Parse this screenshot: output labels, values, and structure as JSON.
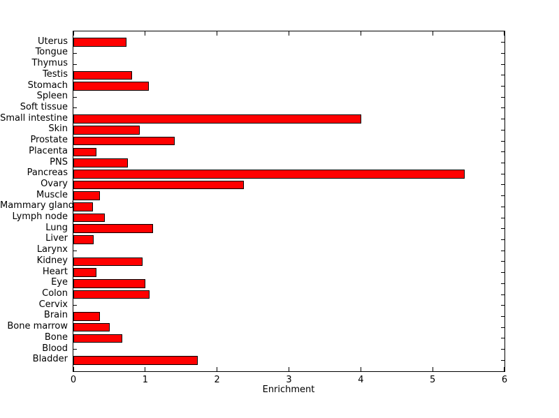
{
  "chart_data": {
    "type": "bar",
    "orientation": "horizontal",
    "title": "",
    "xlabel": "Enrichment",
    "ylabel": "",
    "xlim": [
      0,
      6
    ],
    "xticks": [
      "0",
      "1",
      "2",
      "3",
      "4",
      "5",
      "6"
    ],
    "grid": false,
    "legend": null,
    "bar_color": "#ff0000",
    "bar_edge_color": "#000000",
    "background_color": "#ffffff",
    "categories": [
      "Uterus",
      "Tongue",
      "Thymus",
      "Testis",
      "Stomach",
      "Spleen",
      "Soft tissue",
      "Small intestine",
      "Skin",
      "Prostate",
      "Placenta",
      "PNS",
      "Pancreas",
      "Ovary",
      "Muscle",
      "Mammary gland",
      "Lymph node",
      "Lung",
      "Liver",
      "Larynx",
      "Kidney",
      "Heart",
      "Eye",
      "Colon",
      "Cervix",
      "Brain",
      "Bone marrow",
      "Bone",
      "Blood",
      "Bladder"
    ],
    "values": [
      0.74,
      0,
      0,
      0.82,
      1.05,
      0,
      0,
      4.01,
      0.92,
      1.41,
      0.32,
      0.76,
      5.45,
      2.37,
      0.37,
      0.27,
      0.44,
      1.11,
      0.28,
      0,
      0.96,
      0.32,
      1.0,
      1.06,
      0,
      0.37,
      0.51,
      0.68,
      0,
      1.73
    ]
  }
}
